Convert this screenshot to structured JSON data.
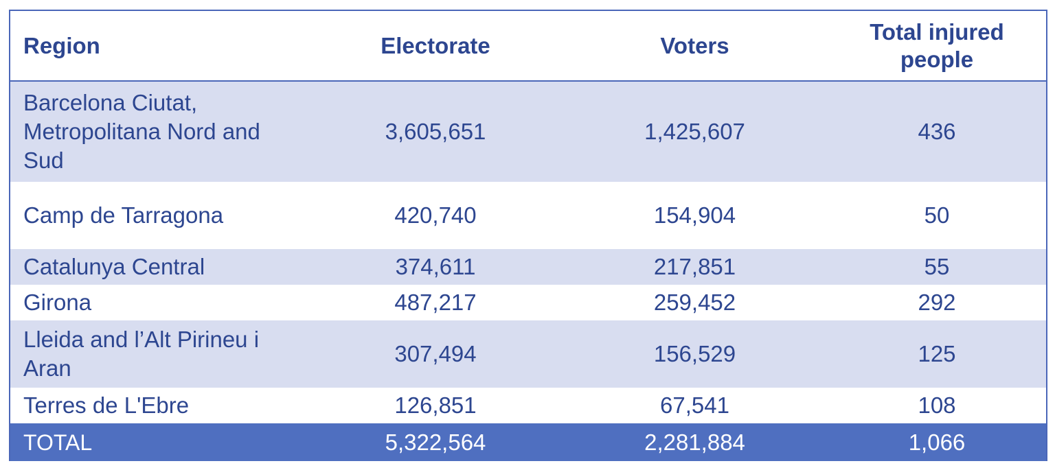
{
  "table": {
    "headers": {
      "region": "Region",
      "electorate": "Electorate",
      "voters": "Voters",
      "injured": "Total injured people"
    },
    "rows": [
      {
        "region": "Barcelona Ciutat, Metropolitana Nord and Sud",
        "electorate": "3,605,651",
        "voters": "1,425,607",
        "injured": "436"
      },
      {
        "region": "Camp de Tarragona",
        "electorate": "420,740",
        "voters": "154,904",
        "injured": "50"
      },
      {
        "region": "Catalunya Central",
        "electorate": "374,611",
        "voters": "217,851",
        "injured": "55"
      },
      {
        "region": "Girona",
        "electorate": "487,217",
        "voters": "259,452",
        "injured": "292"
      },
      {
        "region": "Lleida and l’Alt Pirineu i Aran",
        "electorate": "307,494",
        "voters": "156,529",
        "injured": "125"
      },
      {
        "region": "Terres de L'Ebre",
        "electorate": "126,851",
        "voters": "67,541",
        "injured": "108"
      }
    ],
    "total": {
      "region": "TOTAL",
      "electorate": "5,322,564",
      "voters": "2,281,884",
      "injured": "1,066"
    }
  },
  "colors": {
    "text": "#2d4690",
    "border": "#4a66b8",
    "row_shade": "#d8ddf0",
    "total_bg": "#4f6fc0",
    "total_text": "#ffffff"
  }
}
